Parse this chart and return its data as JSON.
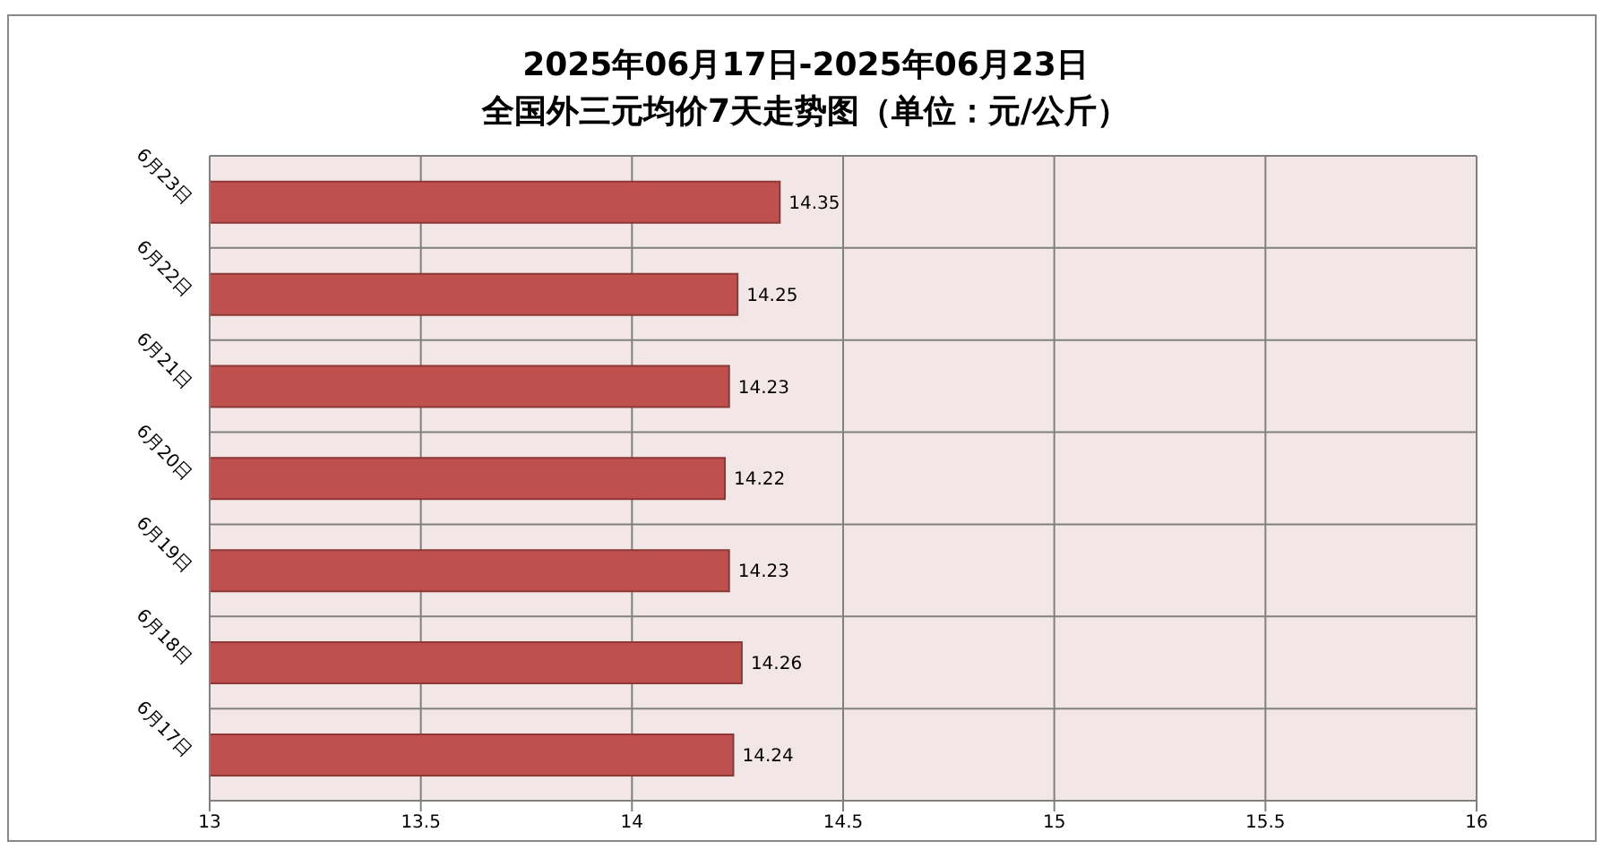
{
  "chart_data": {
    "type": "bar",
    "orientation": "horizontal",
    "title": "2025年06月17日-2025年06月23日",
    "subtitle": "全国外三元均价7天走势图（单位：元/公斤）",
    "categories": [
      "6月23日",
      "6月22日",
      "6月21日",
      "6月20日",
      "6月19日",
      "6月18日",
      "6月17日"
    ],
    "values": [
      14.35,
      14.25,
      14.23,
      14.22,
      14.23,
      14.26,
      14.24
    ],
    "color": "#c0504d",
    "xlim": [
      13,
      16
    ],
    "xticks": [
      13,
      13.5,
      14,
      14.5,
      15,
      15.5,
      16
    ],
    "grid": true,
    "legend": false,
    "data_labels": true
  }
}
